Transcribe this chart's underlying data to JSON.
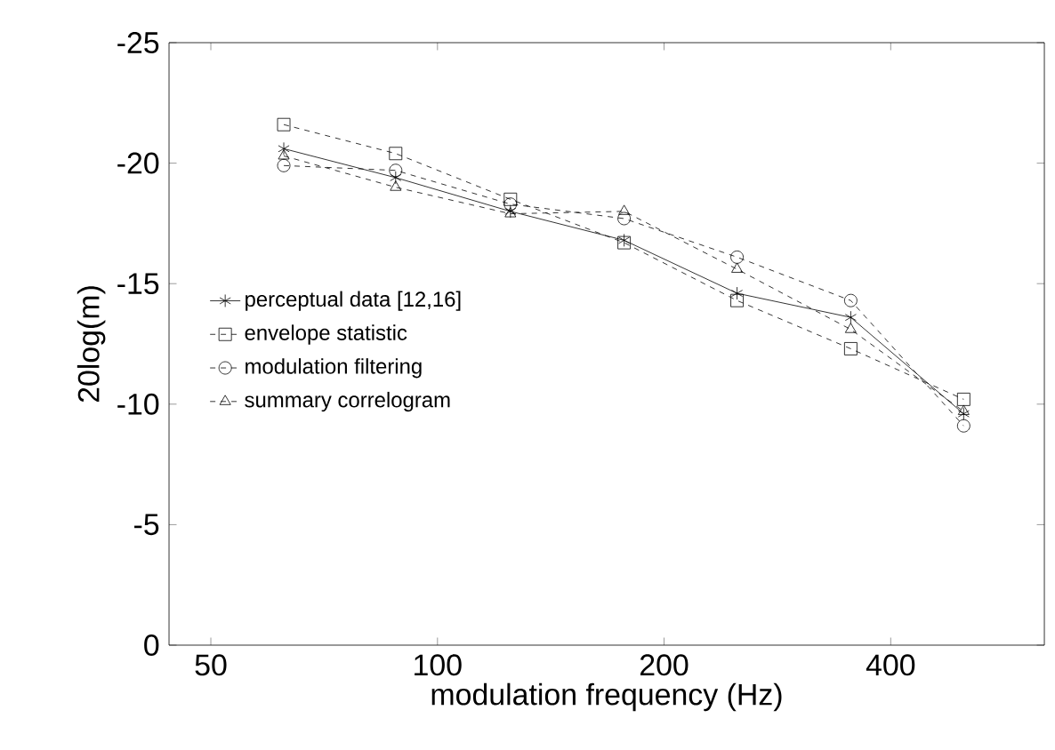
{
  "chart_data": {
    "type": "line",
    "xlabel": "modulation frequency (Hz)",
    "ylabel": "20log(m)",
    "x": [
      62.5,
      88,
      125,
      177,
      250,
      354,
      500
    ],
    "series": [
      {
        "name": "perceptual data [12,16]",
        "color": "#000000",
        "marker": "cross",
        "line_style": "solid",
        "values": [
          -20.6,
          -19.4,
          -18.0,
          -16.8,
          -14.6,
          -13.6,
          -9.6
        ]
      },
      {
        "name": "envelope statistic",
        "color": "#000000",
        "marker": "square",
        "line_style": "dashed",
        "values": [
          -21.6,
          -20.4,
          -18.5,
          -16.7,
          -14.3,
          -12.3,
          -10.2
        ]
      },
      {
        "name": "modulation filtering",
        "color": "#000000",
        "marker": "circle",
        "line_style": "dashed",
        "values": [
          -19.9,
          -19.7,
          -18.3,
          -17.7,
          -16.1,
          -14.3,
          -9.1
        ]
      },
      {
        "name": "summary correlogram",
        "color": "#000000",
        "marker": "triangle",
        "line_style": "dashed",
        "values": [
          -20.3,
          -19.0,
          -17.9,
          -18.0,
          -15.6,
          -13.1,
          -9.7
        ]
      }
    ],
    "log": "x",
    "xlim": [
      44,
      640
    ],
    "ylim": [
      0,
      -25
    ],
    "xticks": [
      50,
      100,
      200,
      400
    ],
    "yticks": [
      -25,
      -20,
      -15,
      -10,
      -5,
      0
    ],
    "legend": "left",
    "grid": false
  }
}
